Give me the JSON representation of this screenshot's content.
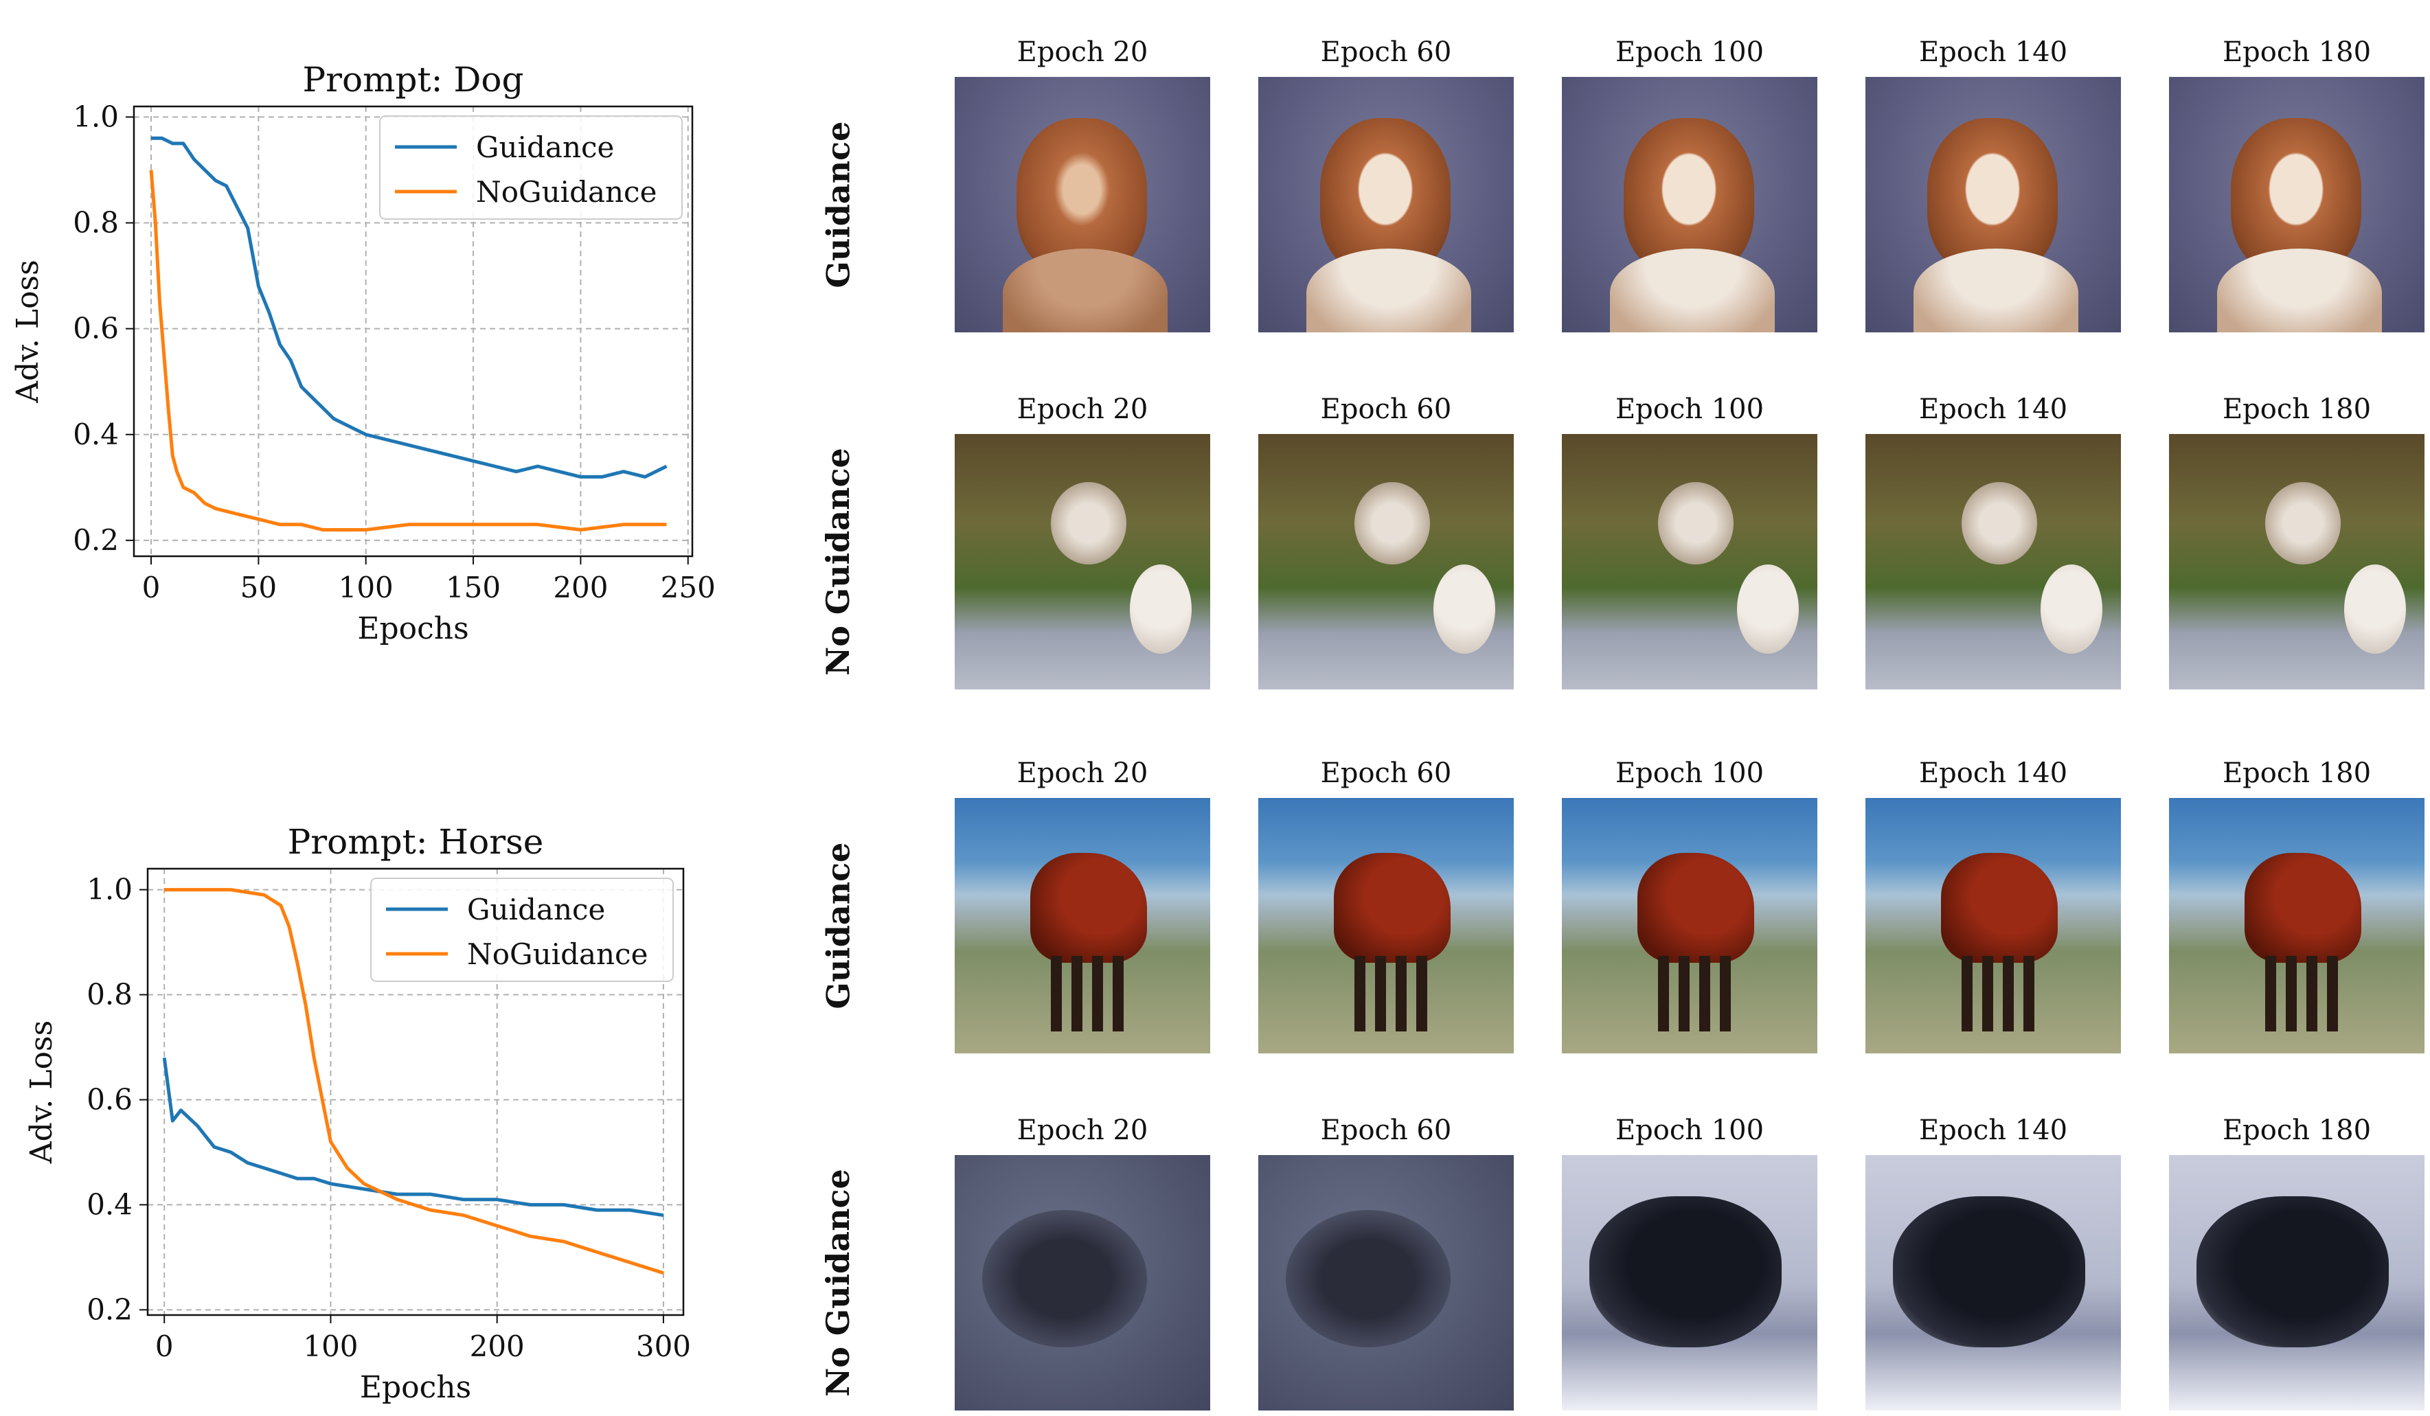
{
  "chart_data": [
    {
      "type": "line",
      "title": "Prompt: Dog",
      "xlabel": "Epochs",
      "ylabel": "Adv. Loss",
      "xlim": [
        -8,
        252
      ],
      "ylim": [
        0.17,
        1.02
      ],
      "xticks": [
        "0",
        "50",
        "100",
        "150",
        "200",
        "250"
      ],
      "yticks": [
        "0.2",
        "0.4",
        "0.6",
        "0.8",
        "1.0"
      ],
      "grid": true,
      "legend": "top-right",
      "series": [
        {
          "name": "Guidance",
          "color": "#1f77b4",
          "x": [
            0,
            5,
            10,
            15,
            20,
            25,
            30,
            35,
            40,
            45,
            50,
            55,
            60,
            65,
            70,
            75,
            80,
            85,
            90,
            95,
            100,
            110,
            120,
            130,
            140,
            150,
            160,
            170,
            180,
            190,
            200,
            210,
            220,
            230,
            240
          ],
          "y": [
            0.96,
            0.96,
            0.95,
            0.95,
            0.92,
            0.9,
            0.88,
            0.87,
            0.83,
            0.79,
            0.68,
            0.63,
            0.57,
            0.54,
            0.49,
            0.47,
            0.45,
            0.43,
            0.42,
            0.41,
            0.4,
            0.39,
            0.38,
            0.37,
            0.36,
            0.35,
            0.34,
            0.33,
            0.34,
            0.33,
            0.32,
            0.32,
            0.33,
            0.32,
            0.34
          ]
        },
        {
          "name": "NoGuidance",
          "color": "#ff7f0e",
          "x": [
            0,
            2,
            4,
            6,
            8,
            10,
            12,
            15,
            20,
            25,
            30,
            40,
            50,
            60,
            70,
            80,
            90,
            100,
            120,
            140,
            160,
            180,
            200,
            220,
            240
          ],
          "y": [
            0.9,
            0.8,
            0.65,
            0.55,
            0.45,
            0.36,
            0.33,
            0.3,
            0.29,
            0.27,
            0.26,
            0.25,
            0.24,
            0.23,
            0.23,
            0.22,
            0.22,
            0.22,
            0.23,
            0.23,
            0.23,
            0.23,
            0.22,
            0.23,
            0.23
          ]
        }
      ]
    },
    {
      "type": "line",
      "title": "Prompt: Horse",
      "xlabel": "Epochs",
      "ylabel": "Adv. Loss",
      "xlim": [
        -10,
        312
      ],
      "ylim": [
        0.19,
        1.04
      ],
      "xticks": [
        "0",
        "100",
        "200",
        "300"
      ],
      "yticks": [
        "0.2",
        "0.4",
        "0.6",
        "0.8",
        "1.0"
      ],
      "grid": true,
      "legend": "top-right",
      "series": [
        {
          "name": "Guidance",
          "color": "#1f77b4",
          "x": [
            0,
            5,
            10,
            20,
            30,
            40,
            50,
            60,
            70,
            80,
            90,
            100,
            120,
            140,
            160,
            180,
            200,
            220,
            240,
            260,
            280,
            300
          ],
          "y": [
            0.68,
            0.56,
            0.58,
            0.55,
            0.51,
            0.5,
            0.48,
            0.47,
            0.46,
            0.45,
            0.45,
            0.44,
            0.43,
            0.42,
            0.42,
            0.41,
            0.41,
            0.4,
            0.4,
            0.39,
            0.39,
            0.38
          ]
        },
        {
          "name": "NoGuidance",
          "color": "#ff7f0e",
          "x": [
            0,
            20,
            40,
            60,
            70,
            75,
            80,
            85,
            90,
            95,
            100,
            110,
            120,
            140,
            160,
            180,
            200,
            220,
            240,
            260,
            280,
            300
          ],
          "y": [
            1.0,
            1.0,
            1.0,
            0.99,
            0.97,
            0.93,
            0.86,
            0.78,
            0.68,
            0.6,
            0.52,
            0.47,
            0.44,
            0.41,
            0.39,
            0.38,
            0.36,
            0.34,
            0.33,
            0.31,
            0.29,
            0.27
          ]
        }
      ]
    }
  ],
  "image_grid": {
    "caption_prefix": "Epoch",
    "columns": [
      "Epoch 20",
      "Epoch 60",
      "Epoch 100",
      "Epoch 140",
      "Epoch 180"
    ],
    "rows": [
      {
        "label": "Guidance",
        "subject": "dog",
        "mode": "guidance"
      },
      {
        "label": "No Guidance",
        "subject": "dog",
        "mode": "no-guidance"
      },
      {
        "label": "Guidance",
        "subject": "horse",
        "mode": "guidance"
      },
      {
        "label": "No Guidance",
        "subject": "horse",
        "mode": "no-guidance"
      }
    ]
  }
}
